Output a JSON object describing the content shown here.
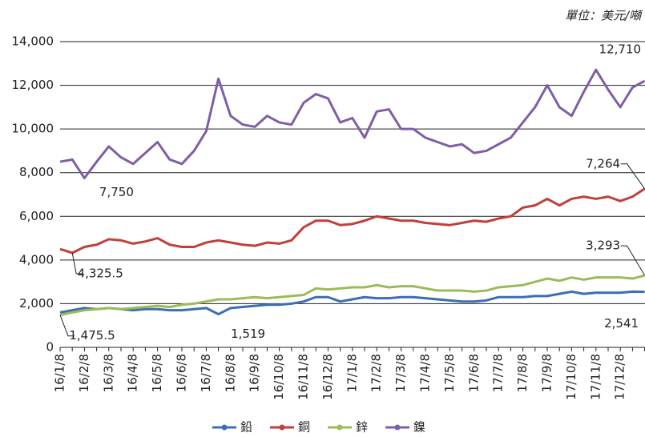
{
  "chart_data": {
    "type": "line",
    "unit": "單位：美元/噸",
    "categories": [
      "16/1/8",
      null,
      "16/2/8",
      null,
      "16/3/8",
      null,
      "16/4/8",
      null,
      "16/5/8",
      null,
      "16/6/8",
      null,
      "16/7/8",
      null,
      "16/8/8",
      null,
      "16/9/8",
      null,
      "16/10/8",
      null,
      "16/11/8",
      null,
      "16/12/8",
      null,
      "17/1/8",
      null,
      "17/2/8",
      null,
      "17/3/8",
      null,
      "17/4/8",
      null,
      "17/5/8",
      null,
      "17/6/8",
      null,
      "17/7/8",
      null,
      "17/8/8",
      null,
      "17/9/8",
      null,
      "17/10/8",
      null,
      "17/11/8",
      null,
      "17/12/8",
      null,
      null
    ],
    "ylim": [
      0,
      14000
    ],
    "yticks": [
      0,
      {
        "value": 2000,
        "label": "2,000"
      },
      {
        "value": 4000,
        "label": "4,000"
      },
      {
        "value": 6000,
        "label": "6,000"
      },
      {
        "value": 8000,
        "label": "8,000"
      },
      {
        "value": 10000,
        "label": "10,000"
      },
      {
        "value": 12000,
        "label": "12,000"
      },
      {
        "value": 14000,
        "label": "14,000"
      }
    ],
    "grid": true,
    "series": [
      {
        "name": "鉛",
        "color": "#3b6fb3",
        "values": [
          1600,
          1700,
          1800,
          1750,
          1800,
          1750,
          1700,
          1750,
          1750,
          1700,
          1700,
          1750,
          1800,
          1519,
          1800,
          1850,
          1900,
          1950,
          1950,
          2000,
          2100,
          2300,
          2300,
          2100,
          2200,
          2300,
          2250,
          2250,
          2300,
          2300,
          2250,
          2200,
          2150,
          2100,
          2100,
          2150,
          2300,
          2300,
          2300,
          2350,
          2350,
          2450,
          2550,
          2450,
          2500,
          2500,
          2500,
          2550,
          2541
        ],
        "value_labels": [
          null,
          null,
          null,
          null,
          null,
          null,
          null,
          null,
          null,
          null,
          null,
          null,
          null,
          "1,519",
          null,
          null,
          null,
          null,
          null,
          null,
          null,
          null,
          null,
          null,
          null,
          null,
          null,
          null,
          null,
          null,
          null,
          null,
          null,
          null,
          null,
          null,
          null,
          null,
          null,
          null,
          null,
          null,
          null,
          null,
          null,
          null,
          null,
          null,
          "2,541"
        ]
      },
      {
        "name": "銅",
        "color": "#c0403a",
        "values": [
          4500,
          4325.5,
          4600,
          4700,
          4950,
          4900,
          4750,
          4850,
          5000,
          4700,
          4600,
          4600,
          4800,
          4900,
          4800,
          4700,
          4650,
          4800,
          4750,
          4900,
          5500,
          5800,
          5800,
          5600,
          5650,
          5800,
          6000,
          5900,
          5800,
          5800,
          5700,
          5650,
          5600,
          5700,
          5800,
          5750,
          5900,
          6000,
          6400,
          6500,
          6800,
          6500,
          6800,
          6900,
          6800,
          6900,
          6700,
          6900,
          7264
        ],
        "value_labels": [
          null,
          "4,325.5",
          null,
          null,
          null,
          null,
          null,
          null,
          null,
          null,
          null,
          null,
          null,
          null,
          null,
          null,
          null,
          null,
          null,
          null,
          null,
          null,
          null,
          null,
          null,
          null,
          null,
          null,
          null,
          null,
          null,
          null,
          null,
          null,
          null,
          null,
          null,
          null,
          null,
          null,
          null,
          null,
          null,
          null,
          null,
          null,
          null,
          null,
          "7,264"
        ]
      },
      {
        "name": "鋅",
        "color": "#9bbb59",
        "values": [
          1475.5,
          1600,
          1700,
          1750,
          1800,
          1750,
          1800,
          1850,
          1900,
          1850,
          1950,
          2000,
          2100,
          2200,
          2200,
          2250,
          2300,
          2250,
          2300,
          2350,
          2400,
          2700,
          2650,
          2700,
          2750,
          2750,
          2850,
          2750,
          2800,
          2800,
          2700,
          2600,
          2600,
          2600,
          2550,
          2600,
          2750,
          2800,
          2850,
          3000,
          3150,
          3050,
          3200,
          3100,
          3200,
          3200,
          3200,
          3150,
          3293
        ],
        "value_labels": [
          "1,475.5",
          null,
          null,
          null,
          null,
          null,
          null,
          null,
          null,
          null,
          null,
          null,
          null,
          null,
          null,
          null,
          null,
          null,
          null,
          null,
          null,
          null,
          null,
          null,
          null,
          null,
          null,
          null,
          null,
          null,
          null,
          null,
          null,
          null,
          null,
          null,
          null,
          null,
          null,
          null,
          null,
          null,
          null,
          null,
          null,
          null,
          null,
          null,
          "3,293"
        ]
      },
      {
        "name": "鎳",
        "color": "#7f5ea8",
        "values": [
          8500,
          8600,
          7750,
          8500,
          9200,
          8700,
          8400,
          8900,
          9400,
          8600,
          8400,
          9000,
          9900,
          12300,
          10600,
          10200,
          10100,
          10600,
          10300,
          10200,
          11200,
          11600,
          11400,
          10300,
          10500,
          9600,
          10800,
          10900,
          10000,
          10000,
          9600,
          9400,
          9200,
          9300,
          8900,
          9000,
          9300,
          9600,
          10300,
          11000,
          12000,
          11000,
          10600,
          11700,
          12710,
          11800,
          11000,
          11900,
          12200
        ],
        "value_labels": [
          null,
          null,
          "7,750",
          null,
          null,
          null,
          null,
          null,
          null,
          null,
          null,
          null,
          null,
          null,
          null,
          null,
          null,
          null,
          null,
          null,
          null,
          null,
          null,
          null,
          null,
          null,
          null,
          null,
          null,
          null,
          null,
          null,
          null,
          null,
          null,
          null,
          null,
          null,
          null,
          null,
          null,
          null,
          null,
          null,
          "12,710",
          null,
          null,
          null,
          null
        ]
      }
    ]
  }
}
